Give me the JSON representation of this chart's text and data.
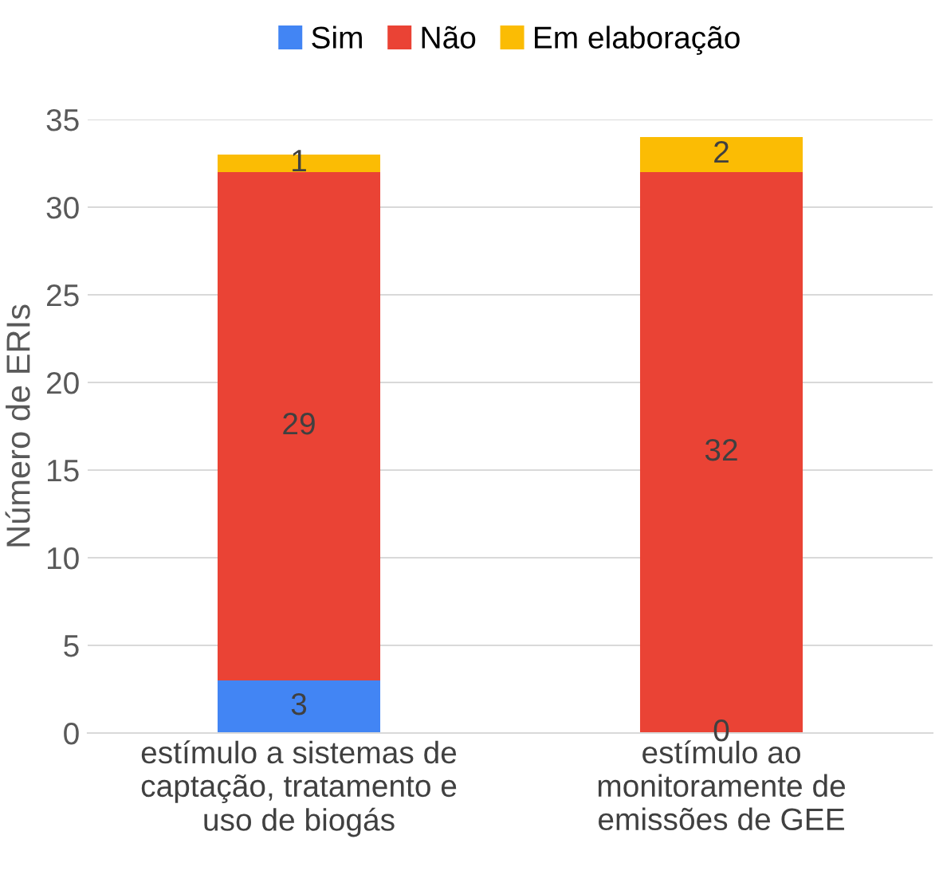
{
  "chart_data": {
    "type": "bar",
    "stacked": true,
    "ylabel": "Número de ERIs",
    "categories": [
      "estímulo a sistemas de\ncaptação, tratamento e\nuso de biogás",
      "estímulo ao\nmonitoramente de\nemissões de GEE"
    ],
    "series": [
      {
        "name": "Sim",
        "color": "#4285f4",
        "values": [
          3,
          0
        ]
      },
      {
        "name": "Não",
        "color": "#ea4335",
        "values": [
          29,
          32
        ]
      },
      {
        "name": "Em elaboração",
        "color": "#fbbc04",
        "values": [
          1,
          2
        ]
      }
    ],
    "ylim": [
      0,
      35
    ],
    "yticks": [
      0,
      5,
      10,
      15,
      20,
      25,
      30,
      35
    ],
    "grid": "y",
    "legend": "top",
    "data_labels": true
  }
}
